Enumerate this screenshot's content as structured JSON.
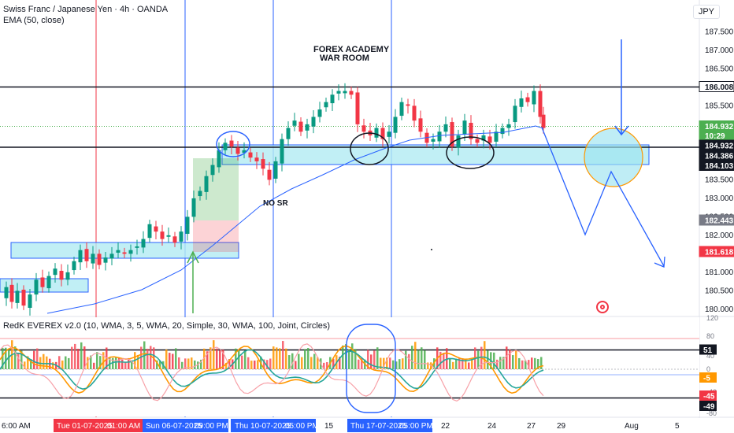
{
  "legend": {
    "symbol_title": "Swiss Franc / Japanese Yen · 4h · OANDA",
    "ema": "EMA (50, close)"
  },
  "currency": "JPY",
  "watermark": {
    "line1": "FOREX ACADEMY",
    "line2": "WAR ROOM"
  },
  "annotation_nosr": "NO SR",
  "oscillator_legend": "RedK EVEREX v2.0 (10, WMA, 3, 5, WMA, 20, Simple, 30, WMA, 100, Joint, Circles)",
  "price_axis": {
    "ticks": [
      "187.500",
      "187.000",
      "186.500",
      "186.000",
      "185.500",
      "185.000",
      "184.500",
      "184.000",
      "183.500",
      "183.000",
      "182.500",
      "182.000",
      "181.500",
      "181.000",
      "180.500",
      "180.000"
    ],
    "labels": [
      {
        "text": "186.008",
        "bg": "#ffffff",
        "fg": "#131722",
        "border": "#131722"
      },
      {
        "text": "184.932",
        "bg": "#4caf50",
        "fg": "#ffffff"
      },
      {
        "text": "10:29",
        "bg": "#4caf50",
        "fg": "#ffffff"
      },
      {
        "text": "184.932",
        "bg": "#131722",
        "fg": "#ffffff"
      },
      {
        "text": "184.386",
        "bg": "#131722",
        "fg": "#ffffff"
      },
      {
        "text": "184.103",
        "bg": "#131722",
        "fg": "#ffffff"
      },
      {
        "text": "182.443",
        "bg": "#787b86",
        "fg": "#ffffff"
      },
      {
        "text": "181.618",
        "bg": "#f23645",
        "fg": "#ffffff"
      }
    ]
  },
  "osc_axis": {
    "ticks": [
      "120",
      "80",
      "40",
      "0",
      "-40",
      "-80"
    ],
    "labels": [
      {
        "text": "51",
        "bg": "#131722",
        "fg": "#ffffff"
      },
      {
        "text": "-5",
        "bg": "#ff9800",
        "fg": "#ffffff"
      },
      {
        "text": "-45",
        "bg": "#f23645",
        "fg": "#ffffff"
      },
      {
        "text": "-49",
        "bg": "#131722",
        "fg": "#ffffff"
      }
    ]
  },
  "time_axis": {
    "ticks": [
      {
        "text": "6:00 AM",
        "hl": false
      },
      {
        "text": "Tue 01-07-2025",
        "hl": "red"
      },
      {
        "text": "01:00 AM",
        "hl": "red"
      },
      {
        "text": "Sun 06-07-2025",
        "hl": "blue"
      },
      {
        "text": "09:00 PM",
        "hl": "blue"
      },
      {
        "text": "Thu 10-07-2025",
        "hl": "blue"
      },
      {
        "text": "05:00 PM",
        "hl": "blue"
      },
      {
        "text": "15",
        "hl": false
      },
      {
        "text": "Thu 17-07-2025",
        "hl": "blue"
      },
      {
        "text": "05:00 PM",
        "hl": "blue"
      },
      {
        "text": "22",
        "hl": false
      },
      {
        "text": "24",
        "hl": false
      },
      {
        "text": "27",
        "hl": false
      },
      {
        "text": "29",
        "hl": false
      },
      {
        "text": "Aug",
        "hl": false
      },
      {
        "text": "5",
        "hl": false
      }
    ]
  },
  "colors": {
    "up": "#089981",
    "down": "#f23645",
    "ema": "#2962ff",
    "zone_fill": "#b2ebf2",
    "zone_stroke": "#2962ff",
    "projection": "#2962ff",
    "circle_fill": "#9ce3f0",
    "circle_stroke": "#ff9800"
  }
}
